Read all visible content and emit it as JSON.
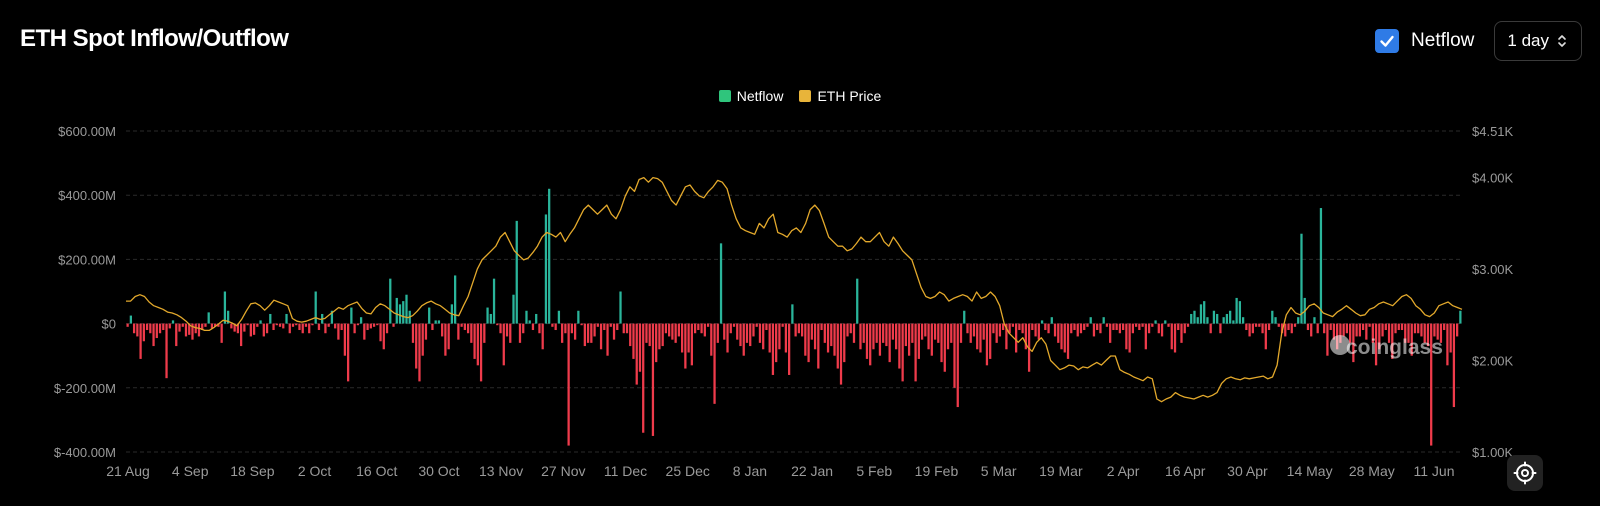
{
  "header": {
    "title": "ETH Spot Inflow/Outflow",
    "netflow_toggle_label": "Netflow",
    "netflow_checked": true,
    "interval_value": "1 day"
  },
  "watermark": "coinglass",
  "colors": {
    "positive": "#2ab59b",
    "negative": "#ef3b4b",
    "price": "#e3a92c",
    "legend_netflow": "#2fc57c",
    "legend_price": "#e8b43a",
    "grid": "#2a2a2a",
    "axis_text": "#9a9a9a"
  },
  "chart_data": {
    "type": "bar",
    "legend": [
      "Netflow",
      "ETH Price"
    ],
    "x_tick_labels": [
      "21 Aug",
      "4 Sep",
      "18 Sep",
      "2 Oct",
      "16 Oct",
      "30 Oct",
      "13 Nov",
      "27 Nov",
      "11 Dec",
      "25 Dec",
      "8 Jan",
      "22 Jan",
      "5 Feb",
      "19 Feb",
      "5 Mar",
      "19 Mar",
      "2 Apr",
      "16 Apr",
      "30 Apr",
      "14 May",
      "28 May",
      "11 Jun"
    ],
    "left_axis": {
      "ticks": [
        "$600.00M",
        "$400.00M",
        "$200.00M",
        "$0",
        "$-200.00M",
        "$-400.00M"
      ],
      "ylim": [
        -400,
        600
      ],
      "unit": "M USD"
    },
    "right_axis": {
      "ticks": [
        "$4.51K",
        "$4.00K",
        "$3.00K",
        "$2.00K",
        "$1.00K"
      ],
      "ylim": [
        1000,
        4510
      ],
      "unit": "USD"
    },
    "x_range": [
      "2024-08-21",
      "2025-06-17"
    ],
    "grid": true,
    "legend_position": "top-center",
    "series": [
      {
        "name": "Netflow",
        "kind": "bar",
        "unit": "M USD",
        "values": [
          -10,
          25,
          -30,
          -40,
          -110,
          -55,
          -20,
          -30,
          -70,
          -45,
          -30,
          -20,
          -170,
          -15,
          10,
          -70,
          -25,
          -10,
          -40,
          -35,
          -50,
          -30,
          -40,
          -20,
          -10,
          35,
          -15,
          -10,
          -10,
          -60,
          100,
          40,
          -15,
          -25,
          -30,
          -70,
          -25,
          -5,
          -40,
          -35,
          -10,
          10,
          -40,
          -30,
          30,
          -20,
          -5,
          -10,
          -15,
          30,
          -30,
          -10,
          -5,
          -20,
          -30,
          -10,
          -30,
          -5,
          100,
          -20,
          30,
          -30,
          -10,
          40,
          -15,
          -50,
          -20,
          -100,
          -180,
          50,
          -30,
          -5,
          20,
          -50,
          -20,
          -15,
          -10,
          -5,
          -55,
          -80,
          -30,
          140,
          -10,
          80,
          60,
          70,
          90,
          40,
          -60,
          -140,
          -180,
          -100,
          -50,
          50,
          -20,
          10,
          10,
          -40,
          -100,
          -80,
          60,
          150,
          -50,
          -10,
          -20,
          -30,
          -60,
          -110,
          -130,
          -180,
          -60,
          50,
          30,
          140,
          -5,
          -30,
          -130,
          -40,
          -60,
          90,
          320,
          -60,
          -30,
          40,
          10,
          -20,
          30,
          -30,
          -80,
          340,
          420,
          -10,
          -20,
          40,
          -60,
          -30,
          -380,
          -30,
          -50,
          40,
          -5,
          -70,
          -60,
          -60,
          -40,
          -10,
          -80,
          -20,
          -100,
          -10,
          -50,
          -20,
          100,
          -30,
          -30,
          -70,
          -110,
          -190,
          -150,
          -340,
          -60,
          -70,
          -350,
          -120,
          -80,
          -70,
          -30,
          -40,
          -50,
          -60,
          -40,
          -90,
          -140,
          -90,
          -130,
          -30,
          -20,
          -30,
          -40,
          -10,
          -100,
          -250,
          -60,
          250,
          -50,
          -90,
          -30,
          -10,
          -50,
          -70,
          -100,
          -60,
          -70,
          -40,
          -10,
          -60,
          -80,
          -20,
          -90,
          -160,
          -120,
          -80,
          -10,
          -90,
          -160,
          60,
          -40,
          -30,
          -40,
          -100,
          -120,
          -50,
          -80,
          -140,
          -20,
          -60,
          -90,
          -70,
          -100,
          -140,
          -190,
          -120,
          -40,
          -30,
          -60,
          140,
          -80,
          -60,
          -110,
          -130,
          -80,
          -60,
          -100,
          -60,
          -70,
          -120,
          -50,
          -80,
          -140,
          -180,
          -70,
          -100,
          -60,
          -180,
          -110,
          -50,
          -40,
          -80,
          -100,
          -50,
          -60,
          -120,
          -150,
          -80,
          -60,
          -200,
          -260,
          -60,
          40,
          -30,
          -60,
          -40,
          -80,
          -90,
          -50,
          -130,
          -110,
          -30,
          -60,
          -40,
          -20,
          -80,
          -30,
          -10,
          -90,
          -20,
          -30,
          -80,
          -150,
          -20,
          -40,
          -50,
          10,
          -20,
          -30,
          20,
          -40,
          -60,
          -80,
          -90,
          -110,
          -30,
          -20,
          -40,
          -30,
          -20,
          -10,
          20,
          -40,
          -20,
          -30,
          20,
          -10,
          -60,
          -20,
          -20,
          -30,
          -20,
          -80,
          -90,
          -30,
          -10,
          -20,
          -10,
          -80,
          -30,
          -10,
          10,
          -30,
          -40,
          10,
          -10,
          -80,
          -90,
          -20,
          -60,
          -30,
          -10,
          30,
          40,
          20,
          60,
          70,
          20,
          -30,
          40,
          30,
          -30,
          20,
          30,
          40,
          10,
          80,
          70,
          20,
          -20,
          -40,
          -30,
          -10,
          -10,
          -30,
          -80,
          -20,
          40,
          20,
          -10,
          -30,
          -40,
          -20,
          -30,
          -10,
          20,
          280,
          80,
          -20,
          -40,
          20,
          -30,
          360,
          -30,
          -100,
          -20,
          -50,
          -80,
          -60,
          -40,
          -30,
          -60,
          -120,
          -40,
          -40,
          -20,
          -50,
          -10,
          -60,
          -130,
          -80,
          -40,
          -20,
          -60,
          -110,
          -30,
          -20,
          -20,
          -60,
          -60,
          -100,
          -30,
          -30,
          -40,
          -60,
          -70,
          -380,
          -40,
          -50,
          -60,
          -20,
          -130,
          -90,
          -260,
          -40,
          40
        ],
        "note": "daily netflow in $M, approximate; first ~60 then sampled"
      },
      {
        "name": "ETH Price",
        "kind": "line",
        "unit": "USD",
        "values": [
          2650,
          2650,
          2700,
          2720,
          2700,
          2640,
          2600,
          2580,
          2560,
          2530,
          2520,
          2500,
          2470,
          2430,
          2380,
          2360,
          2350,
          2330,
          2330,
          2360,
          2400,
          2440,
          2430,
          2410,
          2380,
          2450,
          2540,
          2620,
          2630,
          2600,
          2550,
          2600,
          2660,
          2640,
          2620,
          2600,
          2460,
          2430,
          2420,
          2430,
          2450,
          2470,
          2450,
          2460,
          2500,
          2540,
          2580,
          2560,
          2600,
          2620,
          2640,
          2570,
          2520,
          2510,
          2580,
          2620,
          2600,
          2560,
          2520,
          2500,
          2480,
          2470,
          2490,
          2540,
          2600,
          2630,
          2650,
          2620,
          2600,
          2560,
          2520,
          2500,
          2490,
          2600,
          2700,
          2850,
          3000,
          3100,
          3150,
          3200,
          3250,
          3350,
          3400,
          3300,
          3200,
          3150,
          3100,
          3120,
          3180,
          3250,
          3350,
          3400,
          3380,
          3350,
          3400,
          3300,
          3380,
          3450,
          3550,
          3650,
          3700,
          3650,
          3600,
          3650,
          3700,
          3600,
          3550,
          3650,
          3800,
          3900,
          3850,
          3980,
          4000,
          3950,
          4000,
          3990,
          3950,
          3850,
          3750,
          3700,
          3800,
          3900,
          3920,
          3850,
          3800,
          3780,
          3850,
          3900,
          3970,
          3950,
          3880,
          3700,
          3550,
          3450,
          3420,
          3400,
          3380,
          3500,
          3450,
          3550,
          3600,
          3400,
          3380,
          3350,
          3420,
          3450,
          3400,
          3500,
          3650,
          3700,
          3640,
          3500,
          3350,
          3300,
          3250,
          3250,
          3200,
          3220,
          3280,
          3350,
          3300,
          3300,
          3350,
          3400,
          3300,
          3250,
          3350,
          3280,
          3200,
          3150,
          3100,
          2950,
          2800,
          2700,
          2680,
          2700,
          2750,
          2720,
          2650,
          2680,
          2700,
          2720,
          2700,
          2650,
          2750,
          2680,
          2700,
          2750,
          2700,
          2600,
          2400,
          2300,
          2250,
          2200,
          2250,
          2150,
          2100,
          2200,
          2250,
          2180,
          2000,
          1950,
          1900,
          1920,
          1950,
          1940,
          1900,
          1930,
          1920,
          1950,
          1980,
          1950,
          2000,
          2050,
          2050,
          1900,
          1870,
          1850,
          1820,
          1800,
          1780,
          1820,
          1800,
          1580,
          1550,
          1580,
          1600,
          1650,
          1620,
          1600,
          1590,
          1580,
          1600,
          1620,
          1600,
          1620,
          1650,
          1750,
          1800,
          1820,
          1800,
          1790,
          1810,
          1800,
          1810,
          1820,
          1830,
          1800,
          1820,
          1950,
          2300,
          2500,
          2580,
          2520,
          2500,
          2540,
          2600,
          2620,
          2580,
          2520,
          2500,
          2480,
          2530,
          2560,
          2600,
          2560,
          2520,
          2490,
          2500,
          2560,
          2580,
          2620,
          2640,
          2620,
          2600,
          2650,
          2700,
          2720,
          2680,
          2600,
          2560,
          2500,
          2480,
          2520,
          2600,
          2620,
          2640,
          2600,
          2580,
          2560
        ],
        "note": "approximate ETH price series"
      }
    ]
  }
}
